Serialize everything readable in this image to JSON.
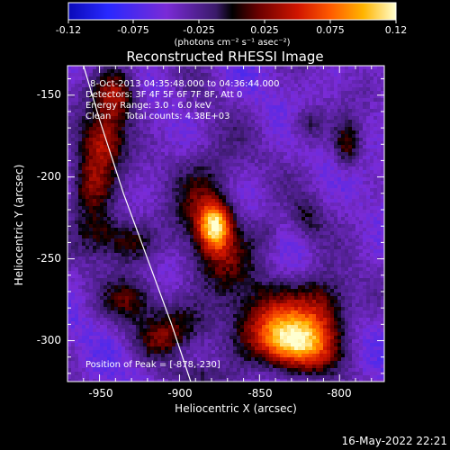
{
  "colorbar": {
    "ticks": [
      "-0.12",
      "-0.075",
      "-0.025",
      "0.025",
      "0.075",
      "0.12"
    ],
    "unit_label": "(photons cm⁻² s⁻¹ asec⁻²)",
    "min": -0.12,
    "max": 0.12
  },
  "footer": {
    "date": "16-May-2022 22:21"
  },
  "chart_data": {
    "type": "heatmap",
    "title": "Reconstructed RHESSI Image",
    "xlabel": "Heliocentric X (arcsec)",
    "ylabel": "Heliocentric Y (arcsec)",
    "xlim": [
      -970,
      -772
    ],
    "ylim": [
      -325,
      -132
    ],
    "xticks": [
      -950,
      -900,
      -850,
      -800
    ],
    "yticks": [
      -150,
      -200,
      -250,
      -300
    ],
    "annotations": [
      "8-Oct-2013 04:35:48.000 to 04:36:44.000",
      "Detectors: 3F 4F 5F 6F 7F 8F, Att 0",
      "Energy Range: 3.0 - 6.0 keV",
      "Clean     Total counts: 4.38E+03"
    ],
    "peak_label": "Position of Peak = [-878,-230]",
    "peak": [
      -878,
      -230
    ],
    "limb_curve": [
      [
        -960,
        -132
      ],
      [
        -950,
        -165
      ],
      [
        -935,
        -210
      ],
      [
        -920,
        -250
      ],
      [
        -905,
        -290
      ],
      [
        -893,
        -325
      ]
    ],
    "sources": [
      {
        "x": -878,
        "y": -230,
        "amplitude": 0.12,
        "sigma_x": 7,
        "sigma_y": 10
      },
      {
        "x": -884,
        "y": -212,
        "amplitude": 0.05,
        "sigma_x": 15,
        "sigma_y": 25
      },
      {
        "x": -872,
        "y": -255,
        "amplitude": 0.04,
        "sigma_x": 14,
        "sigma_y": 16
      },
      {
        "x": -832,
        "y": -300,
        "amplitude": 0.09,
        "sigma_x": 15,
        "sigma_y": 12
      },
      {
        "x": -845,
        "y": -290,
        "amplitude": 0.06,
        "sigma_x": 22,
        "sigma_y": 16
      },
      {
        "x": -810,
        "y": -278,
        "amplitude": 0.07,
        "sigma_x": 12,
        "sigma_y": 14
      },
      {
        "x": -820,
        "y": -305,
        "amplitude": 0.05,
        "sigma_x": 14,
        "sigma_y": 10
      },
      {
        "x": -940,
        "y": -150,
        "amplitude": 0.08,
        "sigma_x": 10,
        "sigma_y": 12
      },
      {
        "x": -948,
        "y": -178,
        "amplitude": 0.07,
        "sigma_x": 10,
        "sigma_y": 12
      },
      {
        "x": -955,
        "y": -205,
        "amplitude": 0.07,
        "sigma_x": 10,
        "sigma_y": 14
      },
      {
        "x": -950,
        "y": -235,
        "amplitude": 0.05,
        "sigma_x": 10,
        "sigma_y": 10
      },
      {
        "x": -930,
        "y": -240,
        "amplitude": 0.05,
        "sigma_x": 10,
        "sigma_y": 10
      },
      {
        "x": -930,
        "y": -275,
        "amplitude": 0.05,
        "sigma_x": 12,
        "sigma_y": 10
      },
      {
        "x": -900,
        "y": -290,
        "amplitude": 0.04,
        "sigma_x": 12,
        "sigma_y": 10
      },
      {
        "x": -915,
        "y": -300,
        "amplitude": 0.04,
        "sigma_x": 10,
        "sigma_y": 8
      },
      {
        "x": -890,
        "y": -322,
        "amplitude": 0.03,
        "sigma_x": 12,
        "sigma_y": 6
      },
      {
        "x": -795,
        "y": -180,
        "amplitude": 0.06,
        "sigma_x": 6,
        "sigma_y": 10
      },
      {
        "x": -820,
        "y": -168,
        "amplitude": 0.04,
        "sigma_x": 8,
        "sigma_y": 8
      },
      {
        "x": -820,
        "y": -225,
        "amplitude": 0.035,
        "sigma_x": 7,
        "sigma_y": 9
      },
      {
        "x": -845,
        "y": -235,
        "amplitude": 0.03,
        "sigma_x": 8,
        "sigma_y": 10
      }
    ]
  }
}
